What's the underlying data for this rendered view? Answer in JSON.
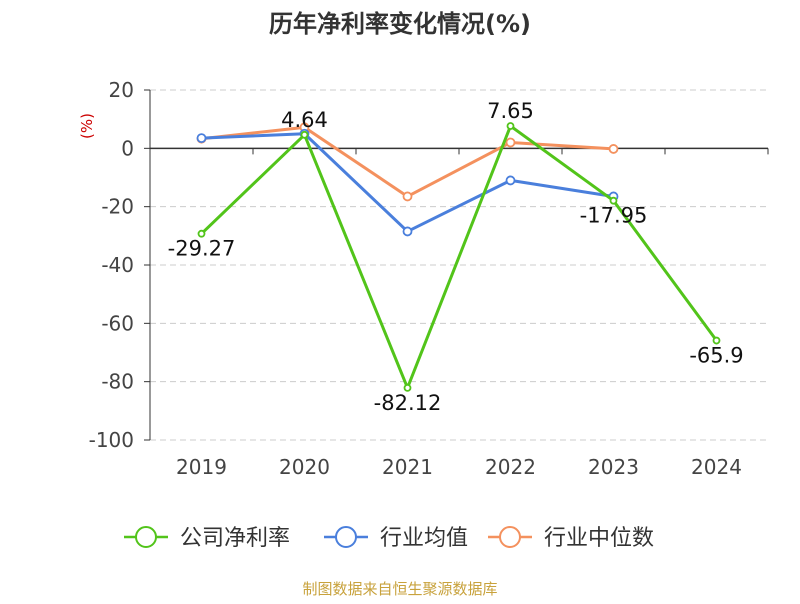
{
  "chart_data": {
    "type": "line",
    "title": "历年净利率变化情况(%)",
    "ylabel": "(%)",
    "xlabel": "",
    "categories": [
      "2019",
      "2020",
      "2021",
      "2022",
      "2023",
      "2024"
    ],
    "ylim": [
      -100,
      20
    ],
    "yticks": [
      20,
      0,
      -20,
      -40,
      -60,
      -80,
      -100
    ],
    "grid": true,
    "legend_position": "bottom",
    "series": [
      {
        "name": "公司净利率",
        "color": "#52c41a",
        "values": [
          -29.27,
          4.64,
          -82.12,
          7.65,
          -17.95,
          -65.9
        ],
        "labels": [
          "-29.27",
          "4.64",
          "-82.12",
          "7.65",
          "-17.95",
          "-65.9"
        ]
      },
      {
        "name": "行业均值",
        "color": "#4a7fdc",
        "values": [
          3.5,
          5.0,
          -28.5,
          -11.0,
          -16.5,
          null
        ]
      },
      {
        "name": "行业中位数",
        "color": "#f4915e",
        "values": [
          3.3,
          7.2,
          -16.5,
          2.0,
          -0.2,
          null
        ]
      }
    ]
  },
  "source_note": "制图数据来自恒生聚源数据库"
}
